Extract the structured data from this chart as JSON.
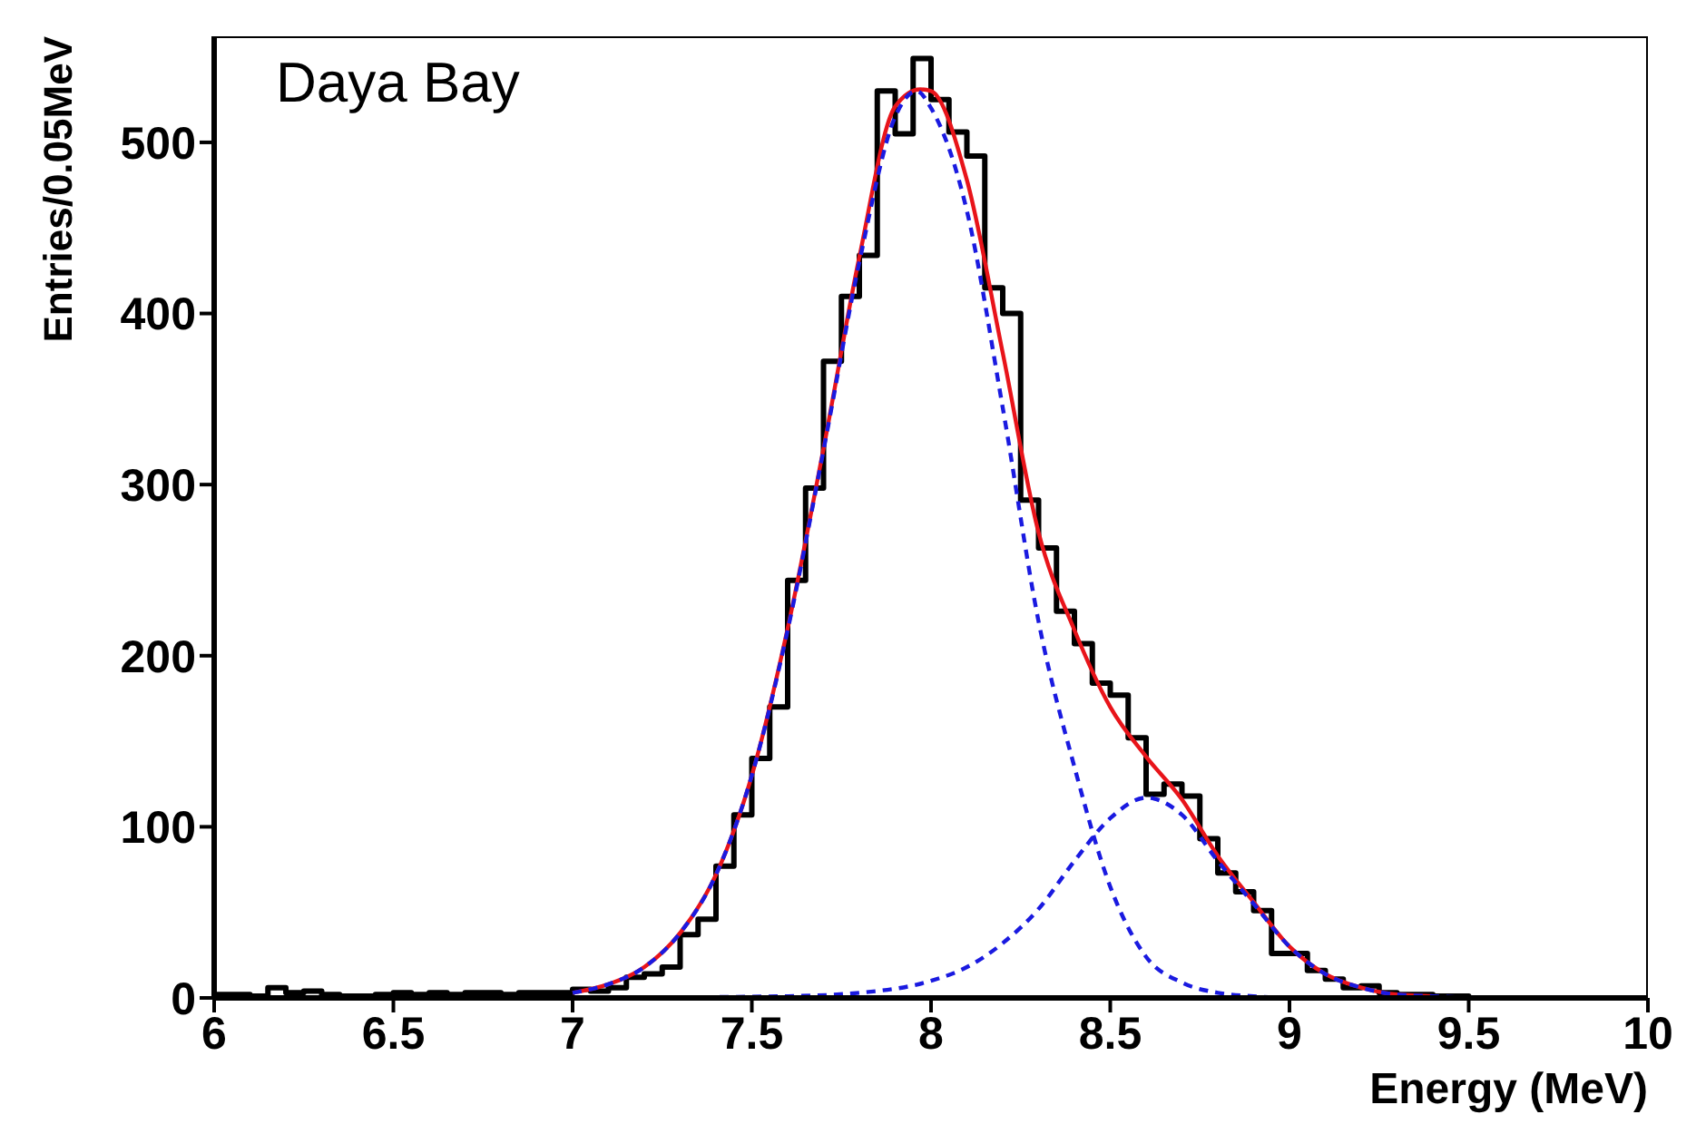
{
  "chart_data": {
    "type": "step",
    "xlabel": "Energy (MeV)",
    "ylabel": "Entries/0.05MeV",
    "annotations": [
      "Daya Bay"
    ],
    "xlim": [
      6,
      10
    ],
    "xticks": [
      6,
      6.5,
      7,
      7.5,
      8,
      8.5,
      9,
      9.5,
      10
    ],
    "ylim": [
      0,
      562
    ],
    "yticks": [
      0,
      100,
      200,
      300,
      400,
      500
    ],
    "marker": "none",
    "series": [
      {
        "color": "#000000",
        "line_style": "solid",
        "x": [
          6,
          6.05,
          6.1,
          6.15,
          6.2,
          6.25,
          6.3,
          6.35,
          6.4,
          6.45,
          6.5,
          6.55,
          6.6,
          6.65,
          6.7,
          6.75,
          6.8,
          6.85,
          6.9,
          6.95,
          7,
          7.05,
          7.1,
          7.15,
          7.2,
          7.25,
          7.3,
          7.35,
          7.4,
          7.45,
          7.5,
          7.55,
          7.6,
          7.65,
          7.7,
          7.75,
          7.8,
          7.85,
          7.9,
          7.95,
          8,
          8.05,
          8.1,
          8.15,
          8.2,
          8.25,
          8.3,
          8.35,
          8.4,
          8.45,
          8.5,
          8.55,
          8.6,
          8.65,
          8.7,
          8.75,
          8.8,
          8.85,
          8.9,
          8.95,
          9,
          9.05,
          9.1,
          9.15,
          9.2,
          9.25,
          9.3,
          9.35,
          9.4,
          9.45,
          9.5,
          9.55,
          9.6,
          9.65,
          9.7,
          9.75,
          9.8,
          9.85,
          9.9,
          9.95
        ],
        "values": [
          2,
          2,
          1,
          6,
          3,
          4,
          2,
          1,
          1,
          2,
          3,
          2,
          3,
          2,
          3,
          3,
          2,
          3,
          3,
          3,
          5,
          4,
          6,
          12,
          14,
          18,
          37,
          46,
          77,
          107,
          140,
          170,
          244,
          298,
          372,
          410,
          434,
          530,
          505,
          549,
          525,
          506,
          492,
          415,
          400,
          291,
          263,
          226,
          207,
          184,
          177,
          152,
          119,
          125,
          118,
          93,
          73,
          62,
          51,
          26,
          26,
          16,
          11,
          6,
          7,
          3,
          2,
          2,
          1,
          1,
          0,
          0,
          0,
          0,
          0,
          0,
          0,
          0,
          0,
          0
        ]
      },
      {
        "type": "line",
        "color": "#e8141a",
        "line_style": "solid",
        "x": [
          7,
          7.1,
          7.2,
          7.3,
          7.4,
          7.5,
          7.6,
          7.7,
          7.8,
          7.9,
          7.97,
          8,
          8.1,
          8.2,
          8.3,
          8.4,
          8.5,
          8.6,
          8.7,
          8.8,
          8.9,
          9,
          9.1,
          9.2,
          9.3,
          9.4
        ],
        "values": [
          3,
          8,
          18,
          38,
          72,
          130,
          216,
          321,
          433,
          521,
          531,
          530,
          478,
          377,
          272,
          215,
          170,
          141,
          116,
          83,
          56,
          30,
          14,
          6,
          2,
          1
        ]
      },
      {
        "type": "line",
        "color": "#1a1ae0",
        "line_style": "dashed",
        "x": [
          7,
          7.1,
          7.2,
          7.3,
          7.4,
          7.5,
          7.6,
          7.7,
          7.8,
          7.9,
          7.96,
          8,
          8.1,
          8.2,
          8.3,
          8.4,
          8.5,
          8.6,
          8.7,
          8.8,
          8.9,
          9,
          9.5
        ],
        "values": [
          3,
          8,
          18,
          38,
          72,
          130,
          215,
          320,
          430,
          515,
          530,
          520,
          460,
          345,
          220,
          135,
          65,
          24,
          9,
          3,
          1,
          0,
          0
        ]
      },
      {
        "type": "line",
        "color": "#1a1ae0",
        "line_style": "dashed",
        "x": [
          7,
          7.6,
          7.8,
          8,
          8.1,
          8.2,
          8.3,
          8.4,
          8.5,
          8.6,
          8.7,
          8.8,
          8.9,
          9,
          9.1,
          9.2,
          9.3,
          9.4,
          9.5
        ],
        "values": [
          0,
          1,
          3,
          10,
          18,
          32,
          52,
          80,
          105,
          117,
          107,
          80,
          55,
          30,
          14,
          6,
          2,
          1,
          0
        ]
      }
    ]
  }
}
